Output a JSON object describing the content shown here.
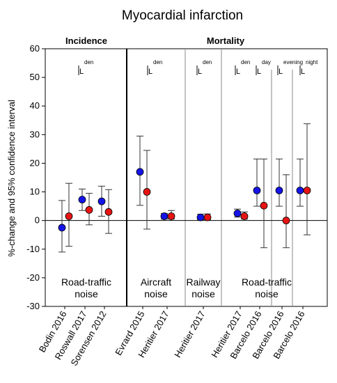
{
  "chart_data": {
    "type": "scatter",
    "title": "Myocardial infarction",
    "ylabel": "%-change and 95% confidence interval",
    "xlabel": "",
    "ylim": [
      -30,
      60
    ],
    "yticks": [
      -30,
      -20,
      -10,
      0,
      10,
      20,
      30,
      40,
      50,
      60
    ],
    "legend": "none",
    "colors": {
      "blue": "#1414e6",
      "red": "#e61414"
    },
    "sections": [
      {
        "id": "incidence",
        "label": "Incidence"
      },
      {
        "id": "mortality",
        "label": "Mortality"
      }
    ],
    "groups": [
      {
        "label": "Road-traffic\nnoise",
        "metric": "L",
        "metric_sub": "den"
      },
      {
        "label": "Aircraft\nnoise",
        "metric": "L",
        "metric_sub": "den"
      },
      {
        "label": "Railway\nnoise",
        "metric": "L",
        "metric_sub": "den"
      },
      {
        "label": "Road-traffic\nnoise",
        "metric": "L",
        "metric_sub": "den"
      }
    ],
    "extra_metrics": [
      {
        "metric": "L",
        "metric_sub": "day"
      },
      {
        "metric": "L",
        "metric_sub": "evening"
      },
      {
        "metric": "L",
        "metric_sub": "night"
      }
    ],
    "categories": [
      "Bodin 2016",
      "Roswall 2017",
      "Sorensen 2012",
      "Evrard 2015",
      "Heritier 2017",
      "Heritier 2017",
      "Heritier 2017",
      "Barcelo 2016",
      "Barcelo 2016",
      "Barcelo 2016"
    ],
    "series": [
      {
        "color": "blue",
        "points": [
          {
            "category": "Bodin 2016",
            "value": -2.5,
            "low": -11,
            "high": 7
          },
          {
            "category": "Roswall 2017",
            "value": 7.3,
            "low": 3.5,
            "high": 11
          },
          {
            "category": "Sorensen 2012",
            "value": 6.7,
            "low": 1.5,
            "high": 12
          },
          {
            "category": "Evrard 2015",
            "value": 17,
            "low": 5.3,
            "high": 29.5
          },
          {
            "category": "Heritier 2017",
            "value": 1.5,
            "low": 0.5,
            "high": 2.5
          },
          {
            "category": "Heritier 2017",
            "value": 1.1,
            "low": 0.2,
            "high": 2.2
          },
          {
            "category": "Heritier 2017",
            "value": 2.5,
            "low": 1.2,
            "high": 4
          },
          {
            "category": "Barcelo 2016",
            "value": 10.5,
            "low": 5,
            "high": 21.5
          },
          {
            "category": "Barcelo 2016",
            "value": 10.5,
            "low": 5,
            "high": 21.5
          },
          {
            "category": "Barcelo 2016",
            "value": 10.5,
            "low": 5,
            "high": 21.5
          }
        ]
      },
      {
        "color": "red",
        "points": [
          {
            "category": "Bodin 2016",
            "value": 1.5,
            "low": -9,
            "high": 13
          },
          {
            "category": "Roswall 2017",
            "value": 3.7,
            "low": -1.5,
            "high": 9.5
          },
          {
            "category": "Sorensen 2012",
            "value": 3,
            "low": -4.5,
            "high": 10.8
          },
          {
            "category": "Evrard 2015",
            "value": 10,
            "low": -3,
            "high": 24.5
          },
          {
            "category": "Heritier 2017",
            "value": 1.5,
            "low": 0.5,
            "high": 3.5
          },
          {
            "category": "Heritier 2017",
            "value": 1.1,
            "low": 0.2,
            "high": 2.3
          },
          {
            "category": "Heritier 2017",
            "value": 1.5,
            "low": 0.5,
            "high": 3
          },
          {
            "category": "Barcelo 2016",
            "value": 5.2,
            "low": -9.5,
            "high": 21.5
          },
          {
            "category": "Barcelo 2016",
            "value": 0,
            "low": -9.5,
            "high": 16
          },
          {
            "category": "Barcelo 2016",
            "value": 10.5,
            "low": -5,
            "high": 33.8
          }
        ]
      }
    ]
  }
}
